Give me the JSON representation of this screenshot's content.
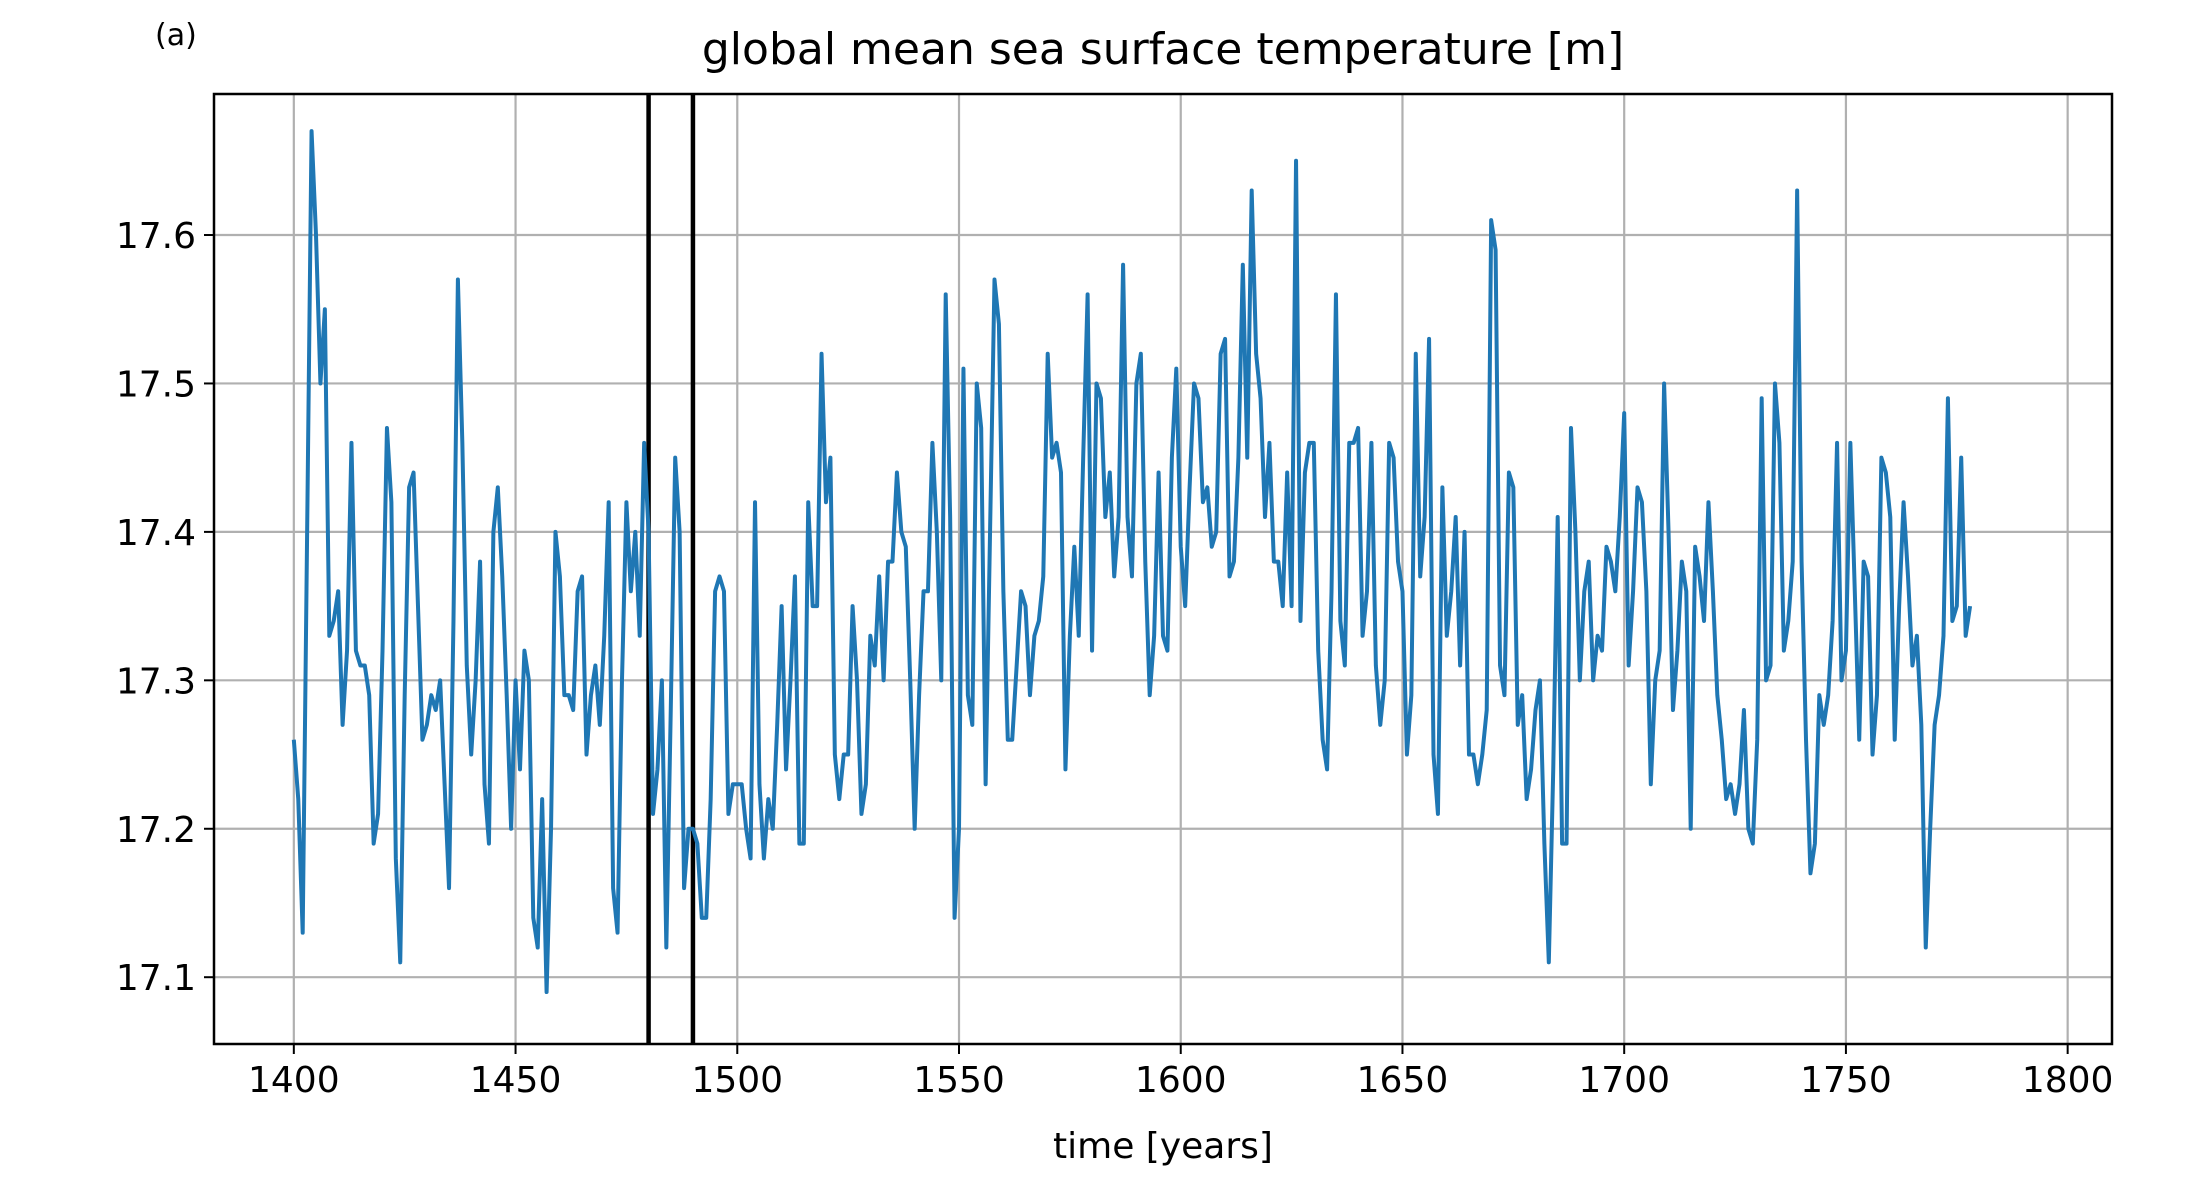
{
  "panel_label": "(a)",
  "chart_data": {
    "type": "line",
    "title": "global mean sea surface temperature [m]",
    "xlabel": "time [years]",
    "ylabel": "",
    "xlim": [
      1382,
      1810
    ],
    "ylim": [
      17.055,
      17.695
    ],
    "x_ticks": [
      1400,
      1450,
      1500,
      1550,
      1600,
      1650,
      1700,
      1750,
      1800
    ],
    "y_ticks": [
      17.1,
      17.2,
      17.3,
      17.4,
      17.5,
      17.6
    ],
    "grid": true,
    "vertical_markers": [
      1480,
      1490
    ],
    "colors": {
      "series": "#1f77b4",
      "markers": "#000000",
      "grid": "#b0b0b0"
    },
    "series": [
      {
        "x_start": 1400,
        "x_step": 1,
        "values": [
          17.26,
          17.22,
          17.13,
          17.4,
          17.67,
          17.6,
          17.5,
          17.55,
          17.33,
          17.34,
          17.36,
          17.27,
          17.32,
          17.46,
          17.32,
          17.31,
          17.31,
          17.29,
          17.19,
          17.21,
          17.32,
          17.47,
          17.42,
          17.18,
          17.11,
          17.29,
          17.43,
          17.44,
          17.35,
          17.26,
          17.27,
          17.29,
          17.28,
          17.3,
          17.23,
          17.16,
          17.34,
          17.57,
          17.46,
          17.31,
          17.25,
          17.3,
          17.38,
          17.23,
          17.19,
          17.4,
          17.43,
          17.37,
          17.29,
          17.2,
          17.3,
          17.24,
          17.32,
          17.3,
          17.14,
          17.12,
          17.22,
          17.09,
          17.2,
          17.4,
          17.37,
          17.29,
          17.29,
          17.28,
          17.36,
          17.37,
          17.25,
          17.29,
          17.31,
          17.27,
          17.33,
          17.42,
          17.16,
          17.13,
          17.3,
          17.42,
          17.36,
          17.4,
          17.33,
          17.46,
          17.4,
          17.21,
          17.24,
          17.3,
          17.12,
          17.28,
          17.45,
          17.4,
          17.16,
          17.2,
          17.2,
          17.19,
          17.14,
          17.14,
          17.22,
          17.36,
          17.37,
          17.36,
          17.21,
          17.23,
          17.23,
          17.23,
          17.2,
          17.18,
          17.42,
          17.23,
          17.18,
          17.22,
          17.2,
          17.27,
          17.35,
          17.24,
          17.3,
          17.37,
          17.19,
          17.19,
          17.42,
          17.35,
          17.35,
          17.52,
          17.42,
          17.45,
          17.25,
          17.22,
          17.25,
          17.25,
          17.35,
          17.3,
          17.21,
          17.23,
          17.33,
          17.31,
          17.37,
          17.3,
          17.38,
          17.38,
          17.44,
          17.4,
          17.39,
          17.3,
          17.2,
          17.29,
          17.36,
          17.36,
          17.46,
          17.4,
          17.3,
          17.56,
          17.41,
          17.14,
          17.2,
          17.51,
          17.29,
          17.27,
          17.5,
          17.47,
          17.23,
          17.4,
          17.57,
          17.54,
          17.36,
          17.26,
          17.26,
          17.31,
          17.36,
          17.35,
          17.29,
          17.33,
          17.34,
          17.37,
          17.52,
          17.45,
          17.46,
          17.44,
          17.24,
          17.33,
          17.39,
          17.33,
          17.45,
          17.56,
          17.32,
          17.5,
          17.49,
          17.41,
          17.44,
          17.37,
          17.41,
          17.58,
          17.41,
          17.37,
          17.5,
          17.52,
          17.38,
          17.29,
          17.33,
          17.44,
          17.33,
          17.32,
          17.45,
          17.51,
          17.39,
          17.35,
          17.43,
          17.5,
          17.49,
          17.42,
          17.43,
          17.39,
          17.4,
          17.52,
          17.53,
          17.37,
          17.38,
          17.45,
          17.58,
          17.45,
          17.63,
          17.52,
          17.49,
          17.41,
          17.46,
          17.38,
          17.38,
          17.35,
          17.44,
          17.35,
          17.65,
          17.34,
          17.44,
          17.46,
          17.46,
          17.32,
          17.26,
          17.24,
          17.36,
          17.56,
          17.34,
          17.31,
          17.46,
          17.46,
          17.47,
          17.33,
          17.36,
          17.46,
          17.31,
          17.27,
          17.3,
          17.46,
          17.45,
          17.38,
          17.36,
          17.25,
          17.29,
          17.52,
          17.37,
          17.41,
          17.53,
          17.25,
          17.21,
          17.43,
          17.33,
          17.36,
          17.41,
          17.31,
          17.4,
          17.25,
          17.25,
          17.23,
          17.25,
          17.28,
          17.61,
          17.59,
          17.31,
          17.29,
          17.44,
          17.43,
          17.27,
          17.29,
          17.22,
          17.24,
          17.28,
          17.3,
          17.19,
          17.11,
          17.24,
          17.41,
          17.19,
          17.19,
          17.47,
          17.4,
          17.3,
          17.36,
          17.38,
          17.3,
          17.33,
          17.32,
          17.39,
          17.38,
          17.36,
          17.41,
          17.48,
          17.31,
          17.36,
          17.43,
          17.42,
          17.36,
          17.23,
          17.3,
          17.32,
          17.5,
          17.4,
          17.28,
          17.32,
          17.38,
          17.36,
          17.2,
          17.39,
          17.37,
          17.34,
          17.42,
          17.36,
          17.29,
          17.26,
          17.22,
          17.23,
          17.21,
          17.23,
          17.28,
          17.2,
          17.19,
          17.26,
          17.49,
          17.3,
          17.31,
          17.5,
          17.46,
          17.32,
          17.34,
          17.38,
          17.63,
          17.38,
          17.26,
          17.17,
          17.19,
          17.29,
          17.27,
          17.29,
          17.34,
          17.46,
          17.3,
          17.32,
          17.46,
          17.36,
          17.26,
          17.38,
          17.37,
          17.25,
          17.29,
          17.45,
          17.44,
          17.41,
          17.26,
          17.35,
          17.42,
          17.37,
          17.31,
          17.33,
          17.27,
          17.12,
          17.2,
          17.27,
          17.29,
          17.33,
          17.49,
          17.34,
          17.35,
          17.45,
          17.33,
          17.35
        ]
      }
    ]
  }
}
